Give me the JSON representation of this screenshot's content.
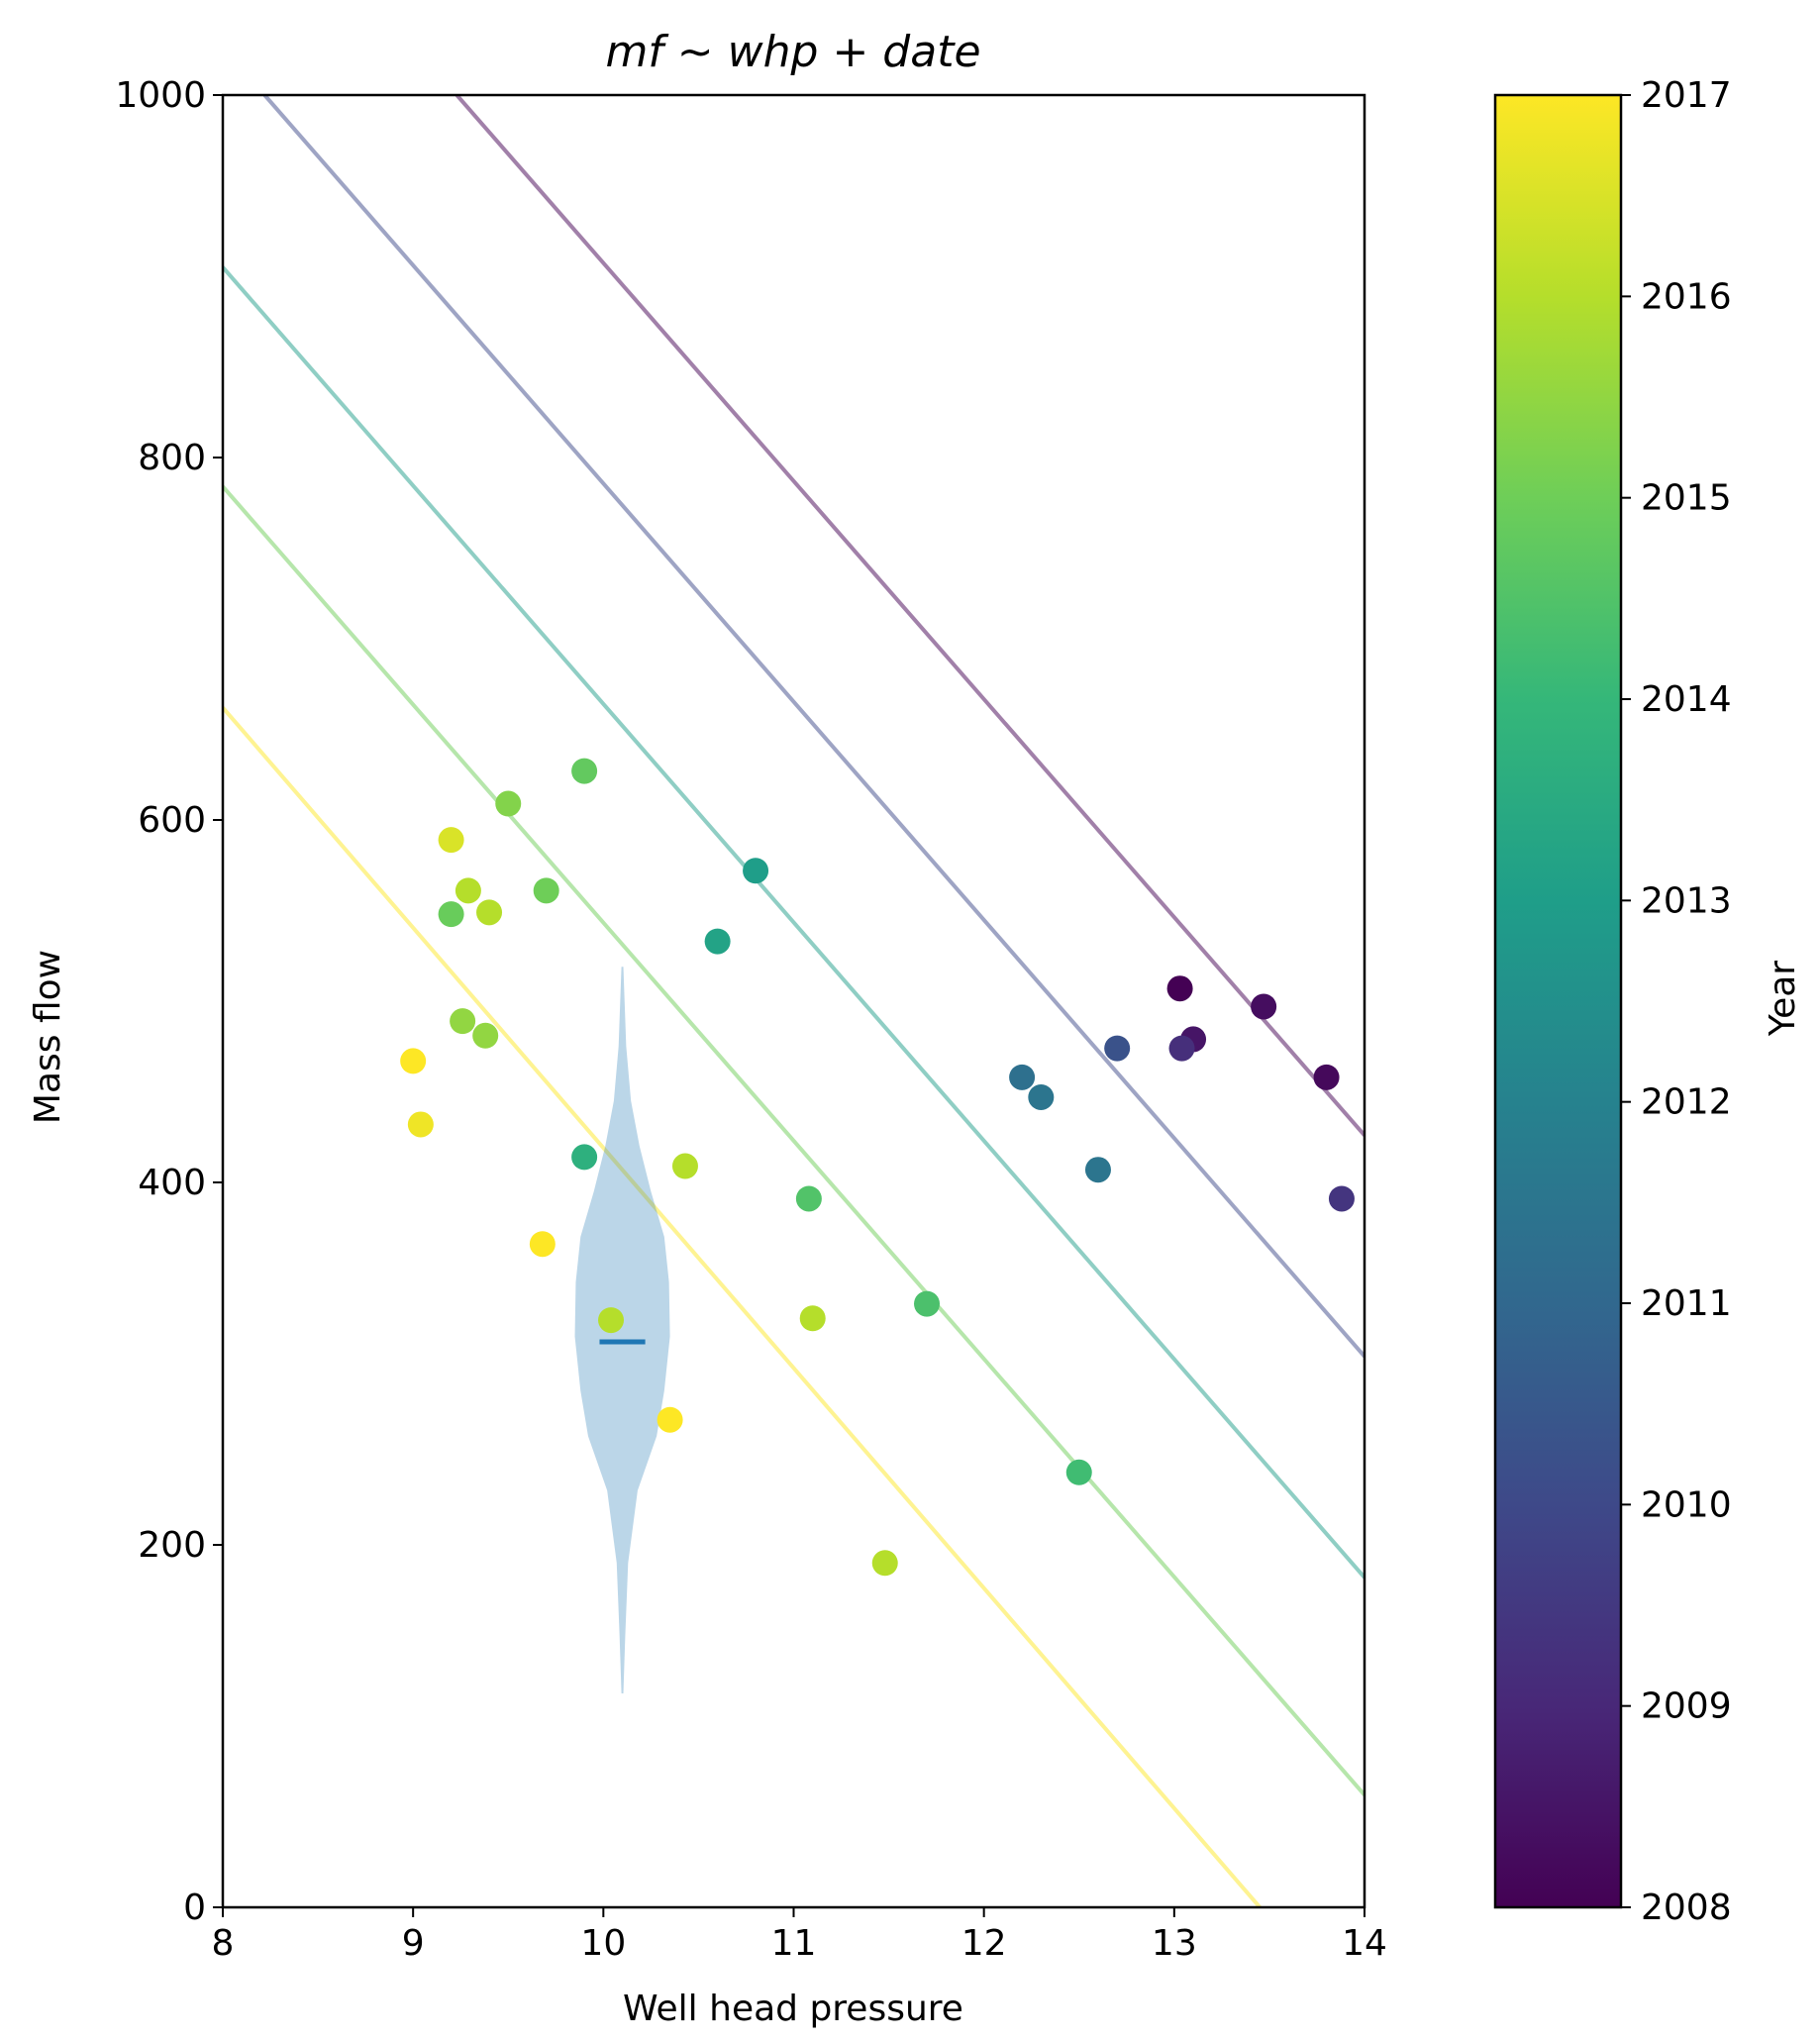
{
  "chart_data": {
    "type": "scatter",
    "title": "mf ~ whp + date",
    "xlabel": "Well head pressure",
    "ylabel": "Mass flow",
    "xlim": [
      8,
      14
    ],
    "ylim": [
      0,
      1000
    ],
    "x_ticks": [
      "8",
      "9",
      "10",
      "11",
      "12",
      "13",
      "14"
    ],
    "y_ticks": [
      "0",
      "200",
      "400",
      "600",
      "800",
      "1000"
    ],
    "grid": false,
    "colormap": "viridis",
    "colorbar": {
      "label": "Year",
      "range": [
        2008,
        2017
      ],
      "ticks": [
        "2008",
        "2009",
        "2010",
        "2011",
        "2012",
        "2013",
        "2014",
        "2015",
        "2016",
        "2017"
      ],
      "colors": [
        "#440154",
        "#482878",
        "#3e4989",
        "#31688e",
        "#26828e",
        "#1f9e89",
        "#35b779",
        "#6ece58",
        "#b5de2b",
        "#fde725"
      ]
    },
    "points": [
      {
        "x": 13.03,
        "y": 507,
        "year": 2008.0
      },
      {
        "x": 13.47,
        "y": 497,
        "year": 2008.3
      },
      {
        "x": 13.1,
        "y": 479,
        "year": 2008.5
      },
      {
        "x": 13.8,
        "y": 458,
        "year": 2008.2
      },
      {
        "x": 13.04,
        "y": 474,
        "year": 2009.2
      },
      {
        "x": 13.88,
        "y": 391,
        "year": 2009.4
      },
      {
        "x": 12.7,
        "y": 474,
        "year": 2010.3
      },
      {
        "x": 12.2,
        "y": 458,
        "year": 2011.3
      },
      {
        "x": 12.3,
        "y": 447,
        "year": 2011.5
      },
      {
        "x": 12.6,
        "y": 407,
        "year": 2011.5
      },
      {
        "x": 10.8,
        "y": 572,
        "year": 2013.0
      },
      {
        "x": 10.6,
        "y": 533,
        "year": 2013.2
      },
      {
        "x": 9.9,
        "y": 414,
        "year": 2013.7
      },
      {
        "x": 12.5,
        "y": 240,
        "year": 2014.2
      },
      {
        "x": 11.7,
        "y": 333,
        "year": 2014.4
      },
      {
        "x": 11.08,
        "y": 391,
        "year": 2014.5
      },
      {
        "x": 9.9,
        "y": 627,
        "year": 2014.8
      },
      {
        "x": 9.7,
        "y": 561,
        "year": 2015.0
      },
      {
        "x": 9.5,
        "y": 609,
        "year": 2015.3
      },
      {
        "x": 9.2,
        "y": 548,
        "year": 2014.9
      },
      {
        "x": 9.26,
        "y": 489,
        "year": 2015.5
      },
      {
        "x": 9.38,
        "y": 481,
        "year": 2015.5
      },
      {
        "x": 9.29,
        "y": 561,
        "year": 2016.0
      },
      {
        "x": 9.4,
        "y": 549,
        "year": 2016.0
      },
      {
        "x": 10.43,
        "y": 409,
        "year": 2016.0
      },
      {
        "x": 11.1,
        "y": 325,
        "year": 2016.0
      },
      {
        "x": 11.48,
        "y": 190,
        "year": 2016.0
      },
      {
        "x": 10.04,
        "y": 324,
        "year": 2016.0
      },
      {
        "x": 9.2,
        "y": 589,
        "year": 2016.5
      },
      {
        "x": 9.0,
        "y": 467,
        "year": 2017.0
      },
      {
        "x": 9.04,
        "y": 432,
        "year": 2016.8
      },
      {
        "x": 9.68,
        "y": 366,
        "year": 2017.0
      },
      {
        "x": 10.35,
        "y": 269,
        "year": 2017.0
      }
    ],
    "fit_lines": [
      {
        "year": 2008,
        "x": [
          9.23,
          14
        ],
        "y": [
          1000,
          426
        ]
      },
      {
        "year": 2010,
        "x": [
          8.22,
          14
        ],
        "y": [
          1000,
          304
        ]
      },
      {
        "year": 2013,
        "x": [
          8,
          14
        ],
        "y": [
          905,
          182
        ]
      },
      {
        "year": 2015,
        "x": [
          8,
          14
        ],
        "y": [
          784,
          62
        ]
      },
      {
        "year": 2017,
        "x": [
          8,
          13.45
        ],
        "y": [
          662,
          0
        ]
      }
    ],
    "violin": {
      "x_center": 10.1,
      "y_range": [
        118,
        519
      ],
      "mean": 312,
      "color": "#1f77b4",
      "profile": [
        {
          "y": 118,
          "half_width": 0.005
        },
        {
          "y": 150,
          "half_width": 0.015
        },
        {
          "y": 190,
          "half_width": 0.03
        },
        {
          "y": 230,
          "half_width": 0.08
        },
        {
          "y": 260,
          "half_width": 0.18
        },
        {
          "y": 285,
          "half_width": 0.22
        },
        {
          "y": 315,
          "half_width": 0.25
        },
        {
          "y": 345,
          "half_width": 0.245
        },
        {
          "y": 370,
          "half_width": 0.22
        },
        {
          "y": 395,
          "half_width": 0.15
        },
        {
          "y": 420,
          "half_width": 0.09
        },
        {
          "y": 445,
          "half_width": 0.045
        },
        {
          "y": 475,
          "half_width": 0.02
        },
        {
          "y": 519,
          "half_width": 0.005
        }
      ]
    }
  }
}
